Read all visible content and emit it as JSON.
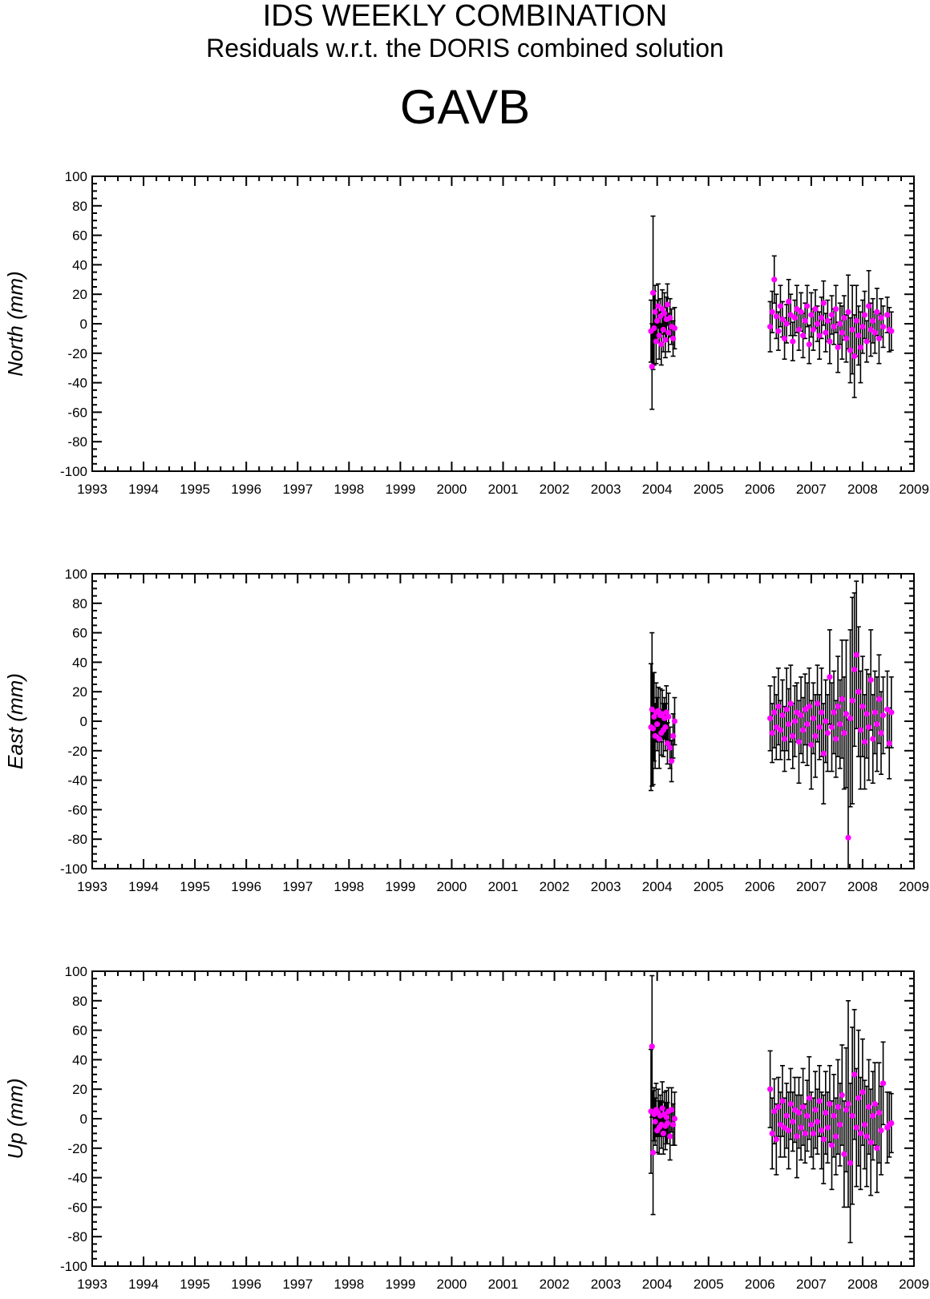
{
  "header": {
    "title": "IDS WEEKLY COMBINATION",
    "subtitle": "Residuals w.r.t. the DORIS combined solution",
    "station": "GAVB"
  },
  "colors": {
    "point": "#ff00ff",
    "errorbar": "#000000",
    "axis": "#000000"
  },
  "chart_data": [
    {
      "type": "scatter",
      "ylabel": "North (mm)",
      "ylim": [
        -100,
        100
      ],
      "yticks": [
        100,
        80,
        60,
        40,
        20,
        0,
        -20,
        -40,
        -60,
        -80,
        -100
      ],
      "xlim": [
        1993,
        2009
      ],
      "xticks": [
        "1993",
        "1994",
        "1995",
        "1996",
        "1997",
        "1998",
        "1999",
        "2000",
        "2001",
        "2002",
        "2003",
        "2004",
        "2005",
        "2006",
        "2007",
        "2008",
        "2009"
      ],
      "grid": false,
      "series": [
        {
          "x": [
            2003.88,
            2003.9,
            2003.92,
            2003.94,
            2003.96,
            2003.98,
            2004.0,
            2004.02,
            2004.04,
            2004.06,
            2004.08,
            2004.1,
            2004.12,
            2004.14,
            2004.16,
            2004.18,
            2004.2,
            2004.22,
            2004.25,
            2004.28,
            2004.31,
            2004.34,
            2006.2,
            2006.24,
            2006.28,
            2006.32,
            2006.36,
            2006.4,
            2006.44,
            2006.48,
            2006.52,
            2006.56,
            2006.6,
            2006.64,
            2006.68,
            2006.72,
            2006.76,
            2006.8,
            2006.84,
            2006.88,
            2006.92,
            2006.96,
            2007.0,
            2007.04,
            2007.08,
            2007.12,
            2007.16,
            2007.2,
            2007.24,
            2007.28,
            2007.32,
            2007.36,
            2007.4,
            2007.44,
            2007.48,
            2007.52,
            2007.56,
            2007.6,
            2007.64,
            2007.68,
            2007.72,
            2007.76,
            2007.8,
            2007.84,
            2007.88,
            2007.92,
            2007.96,
            2008.0,
            2008.04,
            2008.08,
            2008.12,
            2008.16,
            2008.2,
            2008.24,
            2008.28,
            2008.32,
            2008.36,
            2008.4,
            2008.48,
            2008.52,
            2008.56
          ],
          "y": [
            -5,
            -29,
            21,
            -3,
            8,
            -12,
            2,
            12,
            -8,
            5,
            -14,
            10,
            -4,
            7,
            -11,
            3,
            13,
            -6,
            4,
            -2,
            -10,
            -3,
            -2,
            8,
            30,
            5,
            -5,
            12,
            3,
            -10,
            0,
            15,
            6,
            -12,
            4,
            10,
            -4,
            8,
            -8,
            2,
            12,
            -14,
            6,
            -4,
            10,
            0,
            -8,
            4,
            14,
            -6,
            2,
            -12,
            6,
            -2,
            10,
            -16,
            0,
            -6,
            4,
            -10,
            8,
            -18,
            -4,
            -22,
            2,
            -8,
            -16,
            -2,
            6,
            -12,
            12,
            -4,
            2,
            -6,
            8,
            -10,
            4,
            -2,
            6,
            -4,
            -5
          ],
          "err": [
            21,
            29,
            52,
            25,
            18,
            15,
            14,
            15,
            16,
            12,
            14,
            13,
            15,
            14,
            12,
            15,
            14,
            13,
            13,
            12,
            12,
            14,
            17,
            14,
            16,
            15,
            13,
            14,
            12,
            14,
            13,
            15,
            14,
            13,
            12,
            16,
            14,
            13,
            15,
            12,
            14,
            13,
            15,
            14,
            13,
            12,
            16,
            14,
            15,
            13,
            14,
            15,
            13,
            12,
            16,
            17,
            14,
            18,
            15,
            16,
            25,
            22,
            30,
            28,
            24,
            20,
            24,
            18,
            16,
            14,
            24,
            18,
            15,
            14,
            16,
            17,
            13,
            14,
            12,
            15,
            13
          ]
        }
      ]
    },
    {
      "type": "scatter",
      "ylabel": "East (mm)",
      "ylim": [
        -100,
        100
      ],
      "yticks": [
        100,
        80,
        60,
        40,
        20,
        0,
        -20,
        -40,
        -60,
        -80,
        -100
      ],
      "xlim": [
        1993,
        2009
      ],
      "xticks": [
        "1993",
        "1994",
        "1995",
        "1996",
        "1997",
        "1998",
        "1999",
        "2000",
        "2001",
        "2002",
        "2003",
        "2004",
        "2005",
        "2006",
        "2007",
        "2008",
        "2009"
      ],
      "grid": false,
      "series": [
        {
          "x": [
            2003.88,
            2003.9,
            2003.92,
            2003.94,
            2003.96,
            2003.98,
            2004.0,
            2004.02,
            2004.04,
            2004.06,
            2004.08,
            2004.1,
            2004.12,
            2004.14,
            2004.16,
            2004.18,
            2004.2,
            2004.22,
            2004.25,
            2004.28,
            2004.31,
            2004.34,
            2006.2,
            2006.24,
            2006.28,
            2006.32,
            2006.36,
            2006.4,
            2006.44,
            2006.48,
            2006.52,
            2006.56,
            2006.6,
            2006.64,
            2006.68,
            2006.72,
            2006.76,
            2006.8,
            2006.84,
            2006.88,
            2006.92,
            2006.96,
            2007.0,
            2007.04,
            2007.08,
            2007.12,
            2007.16,
            2007.2,
            2007.24,
            2007.28,
            2007.32,
            2007.36,
            2007.4,
            2007.44,
            2007.48,
            2007.52,
            2007.56,
            2007.6,
            2007.64,
            2007.68,
            2007.72,
            2007.76,
            2007.8,
            2007.84,
            2007.88,
            2007.92,
            2007.96,
            2008.0,
            2008.04,
            2008.08,
            2008.12,
            2008.16,
            2008.2,
            2008.24,
            2008.28,
            2008.32,
            2008.36,
            2008.4,
            2008.48,
            2008.52,
            2008.56
          ],
          "y": [
            -4,
            8,
            -5,
            3,
            -10,
            6,
            -2,
            7,
            -12,
            4,
            -8,
            5,
            -6,
            2,
            -4,
            6,
            -15,
            3,
            -18,
            -27,
            -10,
            0,
            2,
            -8,
            6,
            -4,
            10,
            -6,
            4,
            -12,
            8,
            -2,
            12,
            -10,
            0,
            6,
            -14,
            4,
            -6,
            8,
            -2,
            10,
            -16,
            2,
            -10,
            12,
            -4,
            6,
            -22,
            0,
            -8,
            30,
            -4,
            6,
            -12,
            10,
            -2,
            15,
            -8,
            5,
            -79,
            2,
            14,
            35,
            45,
            20,
            -6,
            10,
            -14,
            5,
            -4,
            28,
            -12,
            6,
            -2,
            15,
            -8,
            4,
            8,
            -15,
            6
          ],
          "err": [
            43,
            52,
            38,
            30,
            22,
            20,
            18,
            16,
            20,
            18,
            15,
            16,
            18,
            14,
            16,
            18,
            14,
            16,
            14,
            14,
            15,
            16,
            22,
            20,
            24,
            22,
            26,
            20,
            24,
            22,
            28,
            24,
            26,
            22,
            24,
            20,
            28,
            26,
            22,
            24,
            28,
            26,
            30,
            24,
            28,
            26,
            22,
            30,
            34,
            28,
            26,
            32,
            30,
            28,
            26,
            34,
            30,
            40,
            38,
            50,
            80,
            60,
            70,
            52,
            50,
            44,
            40,
            34,
            32,
            30,
            36,
            34,
            30,
            28,
            32,
            30,
            28,
            26,
            26,
            24,
            24
          ]
        }
      ]
    },
    {
      "type": "scatter",
      "ylabel": "Up (mm)",
      "ylim": [
        -100,
        100
      ],
      "yticks": [
        100,
        80,
        60,
        40,
        20,
        0,
        -20,
        -40,
        -60,
        -80,
        -100
      ],
      "xlim": [
        1993,
        2009
      ],
      "xticks": [
        "1993",
        "1994",
        "1995",
        "1996",
        "1997",
        "1998",
        "1999",
        "2000",
        "2001",
        "2002",
        "2003",
        "2004",
        "2005",
        "2006",
        "2007",
        "2008",
        "2009"
      ],
      "grid": false,
      "series": [
        {
          "x": [
            2003.88,
            2003.9,
            2003.92,
            2003.94,
            2003.96,
            2003.98,
            2004.0,
            2004.02,
            2004.04,
            2004.06,
            2004.08,
            2004.1,
            2004.12,
            2004.14,
            2004.16,
            2004.18,
            2004.2,
            2004.22,
            2004.25,
            2004.28,
            2004.31,
            2004.34,
            2006.2,
            2006.24,
            2006.28,
            2006.32,
            2006.36,
            2006.4,
            2006.44,
            2006.48,
            2006.52,
            2006.56,
            2006.6,
            2006.64,
            2006.68,
            2006.72,
            2006.76,
            2006.8,
            2006.84,
            2006.88,
            2006.92,
            2006.96,
            2007.0,
            2007.04,
            2007.08,
            2007.12,
            2007.16,
            2007.2,
            2007.24,
            2007.28,
            2007.32,
            2007.36,
            2007.4,
            2007.44,
            2007.48,
            2007.52,
            2007.56,
            2007.6,
            2007.64,
            2007.68,
            2007.72,
            2007.76,
            2007.8,
            2007.84,
            2007.88,
            2007.92,
            2007.96,
            2008.0,
            2008.04,
            2008.08,
            2008.12,
            2008.16,
            2008.2,
            2008.24,
            2008.28,
            2008.32,
            2008.36,
            2008.4,
            2008.48,
            2008.52,
            2008.56
          ],
          "y": [
            5,
            49,
            -23,
            3,
            -2,
            6,
            -8,
            4,
            -6,
            2,
            -4,
            7,
            -10,
            3,
            -5,
            1,
            -3,
            5,
            -12,
            6,
            -4,
            0,
            20,
            -10,
            5,
            -14,
            8,
            -4,
            12,
            -6,
            2,
            -8,
            10,
            -2,
            6,
            -12,
            4,
            -6,
            8,
            -10,
            2,
            14,
            -4,
            -10,
            6,
            -2,
            12,
            -8,
            -14,
            4,
            -6,
            10,
            -18,
            2,
            -12,
            8,
            -4,
            16,
            -24,
            6,
            10,
            -30,
            2,
            30,
            -6,
            14,
            -10,
            18,
            -4,
            -12,
            8,
            -16,
            2,
            10,
            -20,
            4,
            -8,
            24,
            -6,
            -4,
            -3
          ],
          "err": [
            42,
            48,
            42,
            18,
            16,
            18,
            15,
            16,
            18,
            14,
            16,
            18,
            14,
            15,
            16,
            18,
            14,
            16,
            16,
            15,
            14,
            18,
            26,
            24,
            22,
            24,
            20,
            22,
            24,
            20,
            22,
            26,
            24,
            20,
            22,
            28,
            24,
            22,
            26,
            20,
            24,
            28,
            22,
            24,
            26,
            22,
            24,
            26,
            30,
            28,
            24,
            26,
            30,
            28,
            26,
            32,
            28,
            34,
            36,
            42,
            70,
            54,
            60,
            44,
            40,
            46,
            38,
            36,
            30,
            34,
            32,
            36,
            30,
            28,
            30,
            34,
            30,
            28,
            24,
            22,
            20
          ]
        }
      ]
    }
  ]
}
